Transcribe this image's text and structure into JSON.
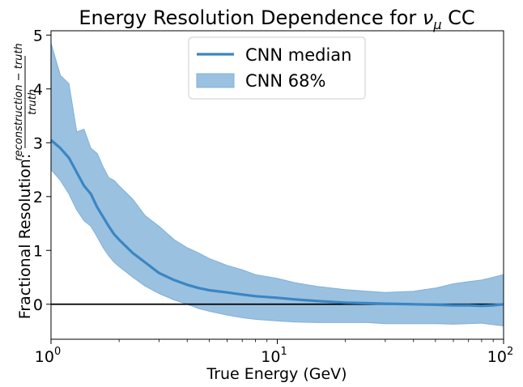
{
  "chart_data": {
    "type": "line",
    "title_prefix": "Energy Resolution Dependence for ",
    "title_symbol": "ν",
    "title_subscript": "μ",
    "title_suffix": " CC",
    "xlabel": "True Energy (GeV)",
    "ylabel_prefix": "Fractional Resolution:",
    "ylabel_numerator": "reconstruction − truth",
    "ylabel_denominator": "truth",
    "xscale": "log",
    "xlim": [
      1,
      100
    ],
    "ylim": [
      -0.65,
      5.08
    ],
    "x_ticks": [
      {
        "value": 1,
        "base": "10",
        "exp": "0"
      },
      {
        "value": 10,
        "base": "10",
        "exp": "1"
      },
      {
        "value": 100,
        "base": "10",
        "exp": "2"
      }
    ],
    "y_ticks": [
      0,
      1,
      2,
      3,
      4,
      5
    ],
    "hline": 0,
    "legend_position": "upper-center",
    "colors": {
      "median": "#3a86c4",
      "band": "#9bc1e0",
      "band_edge": "#7fb0d9",
      "zero_line": "#000000"
    },
    "series": [
      {
        "name": "CNN median",
        "type": "line",
        "x": [
          1.0,
          1.1,
          1.2,
          1.3,
          1.4,
          1.5,
          1.6,
          1.7,
          1.8,
          1.9,
          2.0,
          2.3,
          2.6,
          3.0,
          3.5,
          4.0,
          4.5,
          5,
          6,
          7,
          8,
          10,
          12,
          15,
          20,
          25,
          30,
          40,
          50,
          60,
          70,
          80,
          90,
          100
        ],
        "values": [
          3.05,
          2.9,
          2.72,
          2.45,
          2.2,
          2.05,
          1.8,
          1.62,
          1.45,
          1.3,
          1.2,
          0.95,
          0.78,
          0.58,
          0.45,
          0.36,
          0.3,
          0.26,
          0.22,
          0.18,
          0.15,
          0.12,
          0.09,
          0.06,
          0.03,
          0.02,
          0.01,
          0.0,
          -0.01,
          -0.02,
          -0.02,
          -0.03,
          -0.02,
          0.0
        ]
      },
      {
        "name": "CNN 68%",
        "type": "band",
        "x": [
          1.0,
          1.1,
          1.2,
          1.3,
          1.4,
          1.5,
          1.6,
          1.7,
          1.8,
          1.9,
          2.0,
          2.3,
          2.6,
          3.0,
          3.5,
          4.0,
          4.5,
          5,
          6,
          7,
          8,
          10,
          12,
          15,
          20,
          25,
          30,
          40,
          50,
          60,
          70,
          80,
          90,
          100
        ],
        "upper": [
          4.85,
          4.25,
          4.1,
          3.2,
          3.25,
          2.9,
          2.8,
          2.55,
          2.35,
          2.3,
          2.2,
          1.95,
          1.65,
          1.45,
          1.2,
          1.05,
          0.95,
          0.85,
          0.72,
          0.64,
          0.55,
          0.48,
          0.4,
          0.33,
          0.27,
          0.24,
          0.22,
          0.24,
          0.3,
          0.38,
          0.42,
          0.45,
          0.5,
          0.55
        ],
        "lower": [
          2.5,
          2.3,
          2.05,
          1.75,
          1.55,
          1.45,
          1.25,
          1.05,
          0.9,
          0.78,
          0.7,
          0.5,
          0.34,
          0.2,
          0.08,
          0.0,
          -0.08,
          -0.13,
          -0.2,
          -0.25,
          -0.28,
          -0.31,
          -0.33,
          -0.34,
          -0.34,
          -0.34,
          -0.36,
          -0.36,
          -0.36,
          -0.37,
          -0.36,
          -0.35,
          -0.38,
          -0.4
        ]
      }
    ]
  }
}
